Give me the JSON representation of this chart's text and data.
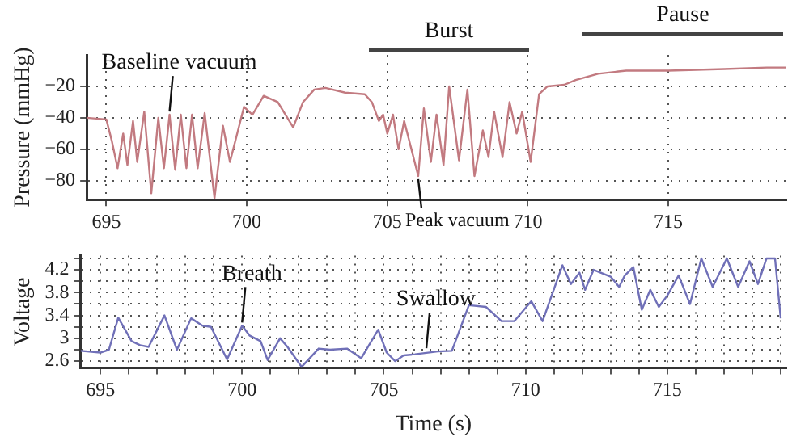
{
  "chart_data": [
    {
      "type": "line",
      "ylabel": "Pressure (mmHg)",
      "xlim": [
        694.3,
        719.2
      ],
      "ylim": [
        -92,
        0
      ],
      "xticks": [
        695,
        700,
        705,
        710,
        715
      ],
      "yticks": [
        {
          "value": -20,
          "label": "−20"
        },
        {
          "value": -40,
          "label": "−40"
        },
        {
          "value": -60,
          "label": "−60"
        },
        {
          "value": -80,
          "label": "−80"
        }
      ],
      "grid": true,
      "marker": "none",
      "x": [
        694.3,
        695.0,
        695.2,
        695.4,
        695.6,
        695.75,
        695.95,
        696.1,
        696.35,
        696.6,
        696.85,
        697.05,
        697.25,
        697.45,
        697.65,
        697.85,
        698.05,
        698.25,
        698.5,
        698.85,
        699.15,
        699.4,
        699.9,
        700.2,
        700.6,
        701.1,
        701.65,
        702.0,
        702.4,
        702.8,
        703.5,
        704.2,
        704.45,
        704.7,
        704.85,
        705.0,
        705.2,
        705.4,
        705.6,
        706.1,
        706.3,
        706.55,
        706.75,
        707.0,
        707.2,
        707.55,
        707.85,
        708.1,
        708.4,
        708.6,
        708.8,
        709.1,
        709.35,
        709.6,
        709.8,
        710.1,
        710.4,
        710.7,
        711.3,
        711.7,
        712.5,
        713.5,
        715.0,
        717.0,
        718.5,
        719.2
      ],
      "series": [
        {
          "color": "#c27a80",
          "values": [
            -40,
            -41,
            -55,
            -72,
            -50,
            -70,
            -42,
            -68,
            -36,
            -88,
            -40,
            -72,
            -38,
            -73,
            -38,
            -72,
            -38,
            -72,
            -37,
            -91,
            -45,
            -68,
            -33,
            -38,
            -26,
            -30,
            -46,
            -30,
            -22,
            -21,
            -24,
            -25,
            -30,
            -42,
            -38,
            -50,
            -38,
            -60,
            -42,
            -77,
            -34,
            -68,
            -38,
            -70,
            -20,
            -67,
            -22,
            -77,
            -48,
            -65,
            -36,
            -65,
            -30,
            -50,
            -36,
            -68,
            -25,
            -20,
            -19,
            -16,
            -12,
            -10,
            -10,
            -9,
            -8,
            -8
          ]
        }
      ],
      "annotations": [
        "Burst",
        "Pause",
        {
          "text": "Baseline vacuum",
          "x": 697.25,
          "y": -38
        },
        {
          "text": "Peak vacuum",
          "x": 706.1,
          "y": -77
        }
      ]
    },
    {
      "type": "line",
      "xlabel": "Time (s)",
      "ylabel": "Voltage",
      "xlim": [
        694.3,
        719.2
      ],
      "ylim": [
        2.48,
        4.45
      ],
      "xticks": [
        {
          "value": 695,
          "label": "695"
        },
        {
          "value": 696,
          "label": null
        },
        {
          "value": 697,
          "label": null
        },
        {
          "value": 698,
          "label": null
        },
        {
          "value": 699,
          "label": null
        },
        {
          "value": 700,
          "label": "700"
        },
        {
          "value": 701,
          "label": null
        },
        {
          "value": 702,
          "label": null
        },
        {
          "value": 703,
          "label": null
        },
        {
          "value": 704,
          "label": null
        },
        {
          "value": 705,
          "label": "705"
        },
        {
          "value": 706,
          "label": null
        },
        {
          "value": 707,
          "label": null
        },
        {
          "value": 708,
          "label": null
        },
        {
          "value": 709,
          "label": null
        },
        {
          "value": 710,
          "label": "710"
        },
        {
          "value": 711,
          "label": null
        },
        {
          "value": 712,
          "label": null
        },
        {
          "value": 713,
          "label": null
        },
        {
          "value": 714,
          "label": null
        },
        {
          "value": 715,
          "label": "715"
        },
        {
          "value": 716,
          "label": null
        },
        {
          "value": 717,
          "label": null
        },
        {
          "value": 718,
          "label": null
        },
        {
          "value": 719,
          "label": null
        }
      ],
      "yticks": [
        2.6,
        {
          "value": 2.8,
          "label": null
        },
        3,
        {
          "value": 3.2,
          "label": null
        },
        3.4,
        {
          "value": 3.6,
          "label": null
        },
        3.8,
        {
          "value": 4.0,
          "label": null
        },
        4.2,
        {
          "value": 4.4,
          "label": null
        }
      ],
      "grid": true,
      "marker": "none",
      "x": [
        694.3,
        695.0,
        695.3,
        695.63,
        696.1,
        696.4,
        696.7,
        697.26,
        697.7,
        698.2,
        698.6,
        698.9,
        699.47,
        700.0,
        700.26,
        700.65,
        700.9,
        701.34,
        701.6,
        702.1,
        702.7,
        703.1,
        703.7,
        704.2,
        704.8,
        705.1,
        705.4,
        705.7,
        706.1,
        706.9,
        707.4,
        708.0,
        708.6,
        709.15,
        709.6,
        710.2,
        710.6,
        711.3,
        711.6,
        711.9,
        712.1,
        712.4,
        713.0,
        713.3,
        713.5,
        713.8,
        714.1,
        714.4,
        714.7,
        715.0,
        715.4,
        715.8,
        716.2,
        716.6,
        717.1,
        717.5,
        717.9,
        718.2,
        718.5,
        718.8,
        719.0
      ],
      "series": [
        {
          "color": "#7070b8",
          "values": [
            2.78,
            2.75,
            2.8,
            3.36,
            2.95,
            2.88,
            2.85,
            3.4,
            2.8,
            3.35,
            3.22,
            3.2,
            2.63,
            3.22,
            3.05,
            2.95,
            2.62,
            3.0,
            2.85,
            2.5,
            2.82,
            2.8,
            2.82,
            2.65,
            3.15,
            2.75,
            2.6,
            2.7,
            2.72,
            2.77,
            2.78,
            3.58,
            3.55,
            3.3,
            3.3,
            3.65,
            3.3,
            4.28,
            3.95,
            4.15,
            3.85,
            4.2,
            4.08,
            3.9,
            4.1,
            4.25,
            3.5,
            3.85,
            3.55,
            3.75,
            4.1,
            3.6,
            4.4,
            3.9,
            4.4,
            3.9,
            4.35,
            3.95,
            4.4,
            4.4,
            3.35
          ]
        }
      ],
      "annotations": [
        {
          "text": "Breath",
          "x": 700.0,
          "y": 3.22
        },
        {
          "text": "Swallow",
          "x": 706.5,
          "y": 2.77
        }
      ]
    }
  ]
}
